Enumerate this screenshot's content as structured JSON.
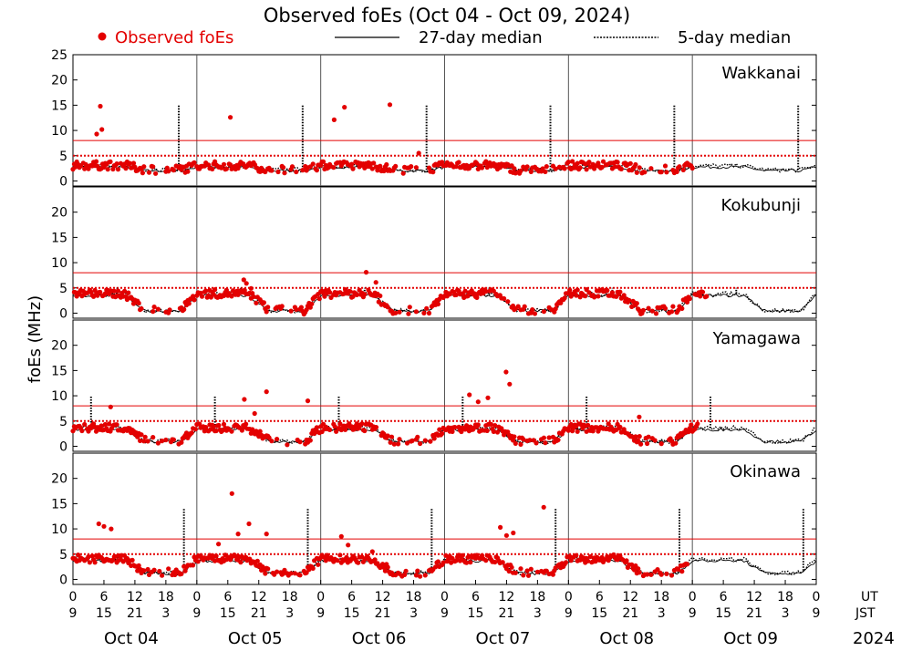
{
  "chart_data": {
    "type": "scatter",
    "title": "Observed foEs (Oct 04 - Oct 09, 2024)",
    "ylabel": "foEs (MHz)",
    "ylim": [
      -1,
      25
    ],
    "xlim_hours_ut": [
      0,
      144
    ],
    "y_ticks": [
      0,
      5,
      10,
      15,
      20,
      25
    ],
    "y_ticks_lower": [
      0,
      5,
      10,
      15,
      20
    ],
    "x_ticks_ut": [
      "0",
      "6",
      "12",
      "18",
      "0",
      "6",
      "12",
      "18",
      "0",
      "6",
      "12",
      "18",
      "0",
      "6",
      "12",
      "18",
      "0",
      "6",
      "12",
      "18",
      "0",
      "6",
      "12",
      "18",
      "0"
    ],
    "x_ticks_jst": [
      "9",
      "15",
      "21",
      "3",
      "9",
      "15",
      "21",
      "3",
      "9",
      "15",
      "21",
      "3",
      "9",
      "15",
      "21",
      "3",
      "9",
      "15",
      "21",
      "3",
      "9",
      "15",
      "21",
      "3",
      "9"
    ],
    "ut_label": "UT",
    "jst_label": "JST",
    "year_label": "2024",
    "days": [
      "Oct 04",
      "Oct 05",
      "Oct 06",
      "Oct 07",
      "Oct 08",
      "Oct 09"
    ],
    "legend": {
      "observed": "Observed foEs",
      "median27": "27-day median",
      "median5": "5-day median"
    },
    "reference_lines_mhz": [
      8,
      5
    ],
    "colors": {
      "observed": "#e30000",
      "median": "#000000",
      "reference": "#e30000"
    },
    "stations": [
      {
        "name": "Wakkanai",
        "obs_end_hour": 120,
        "base": 3.0,
        "night": 2.2,
        "outliers": [
          [
            4.6,
            9.3
          ],
          [
            5.6,
            10.2
          ],
          [
            5.3,
            14.8
          ],
          [
            30.5,
            12.6
          ],
          [
            50.6,
            12.1
          ],
          [
            52.6,
            14.6
          ],
          [
            61.4,
            15.1
          ],
          [
            67.0,
            5.5
          ]
        ],
        "spikes": [
          [
            20.5,
            15.0
          ],
          [
            44.5,
            15.0
          ],
          [
            68.5,
            15.0
          ],
          [
            92.5,
            15.0
          ],
          [
            116.5,
            15.0
          ],
          [
            140.5,
            15.0
          ]
        ]
      },
      {
        "name": "Kokubunji",
        "obs_end_hour": 123,
        "base": 3.8,
        "night": 0.5,
        "outliers": [
          [
            33.1,
            6.6
          ],
          [
            34.5,
            4.9
          ],
          [
            56.8,
            8.1
          ],
          [
            58.7,
            6.1
          ],
          [
            33.6,
            5.9
          ]
        ],
        "spikes": [
          [
            8.5,
            5.0
          ],
          [
            32.5,
            5.0
          ],
          [
            56.5,
            5.0
          ],
          [
            80.5,
            5.0
          ],
          [
            104.5,
            5.0
          ],
          [
            128.5,
            5.0
          ]
        ]
      },
      {
        "name": "Yamagawa",
        "obs_end_hour": 121,
        "base": 3.6,
        "night": 1.0,
        "outliers": [
          [
            7.3,
            7.8
          ],
          [
            33.2,
            9.3
          ],
          [
            37.5,
            10.8
          ],
          [
            45.5,
            9.0
          ],
          [
            35.2,
            6.5
          ],
          [
            76.8,
            10.2
          ],
          [
            78.5,
            8.8
          ],
          [
            80.4,
            9.6
          ],
          [
            83.9,
            14.7
          ],
          [
            84.6,
            12.3
          ],
          [
            109.7,
            5.8
          ]
        ],
        "spikes": [
          [
            3.5,
            10.0
          ],
          [
            27.5,
            10.0
          ],
          [
            51.5,
            10.0
          ],
          [
            75.5,
            10.0
          ],
          [
            99.5,
            10.0
          ],
          [
            123.5,
            10.0
          ]
        ]
      },
      {
        "name": "Okinawa",
        "obs_end_hour": 119,
        "base": 4.0,
        "night": 1.3,
        "outliers": [
          [
            30.8,
            17.0
          ],
          [
            32.0,
            9.0
          ],
          [
            34.1,
            11.0
          ],
          [
            37.5,
            9.0
          ],
          [
            5.0,
            11.0
          ],
          [
            6.0,
            10.5
          ],
          [
            7.4,
            10.0
          ],
          [
            28.2,
            7.0
          ],
          [
            52.0,
            8.5
          ],
          [
            53.3,
            6.8
          ],
          [
            82.8,
            10.3
          ],
          [
            84.0,
            8.7
          ],
          [
            85.3,
            9.2
          ],
          [
            91.2,
            14.3
          ],
          [
            58.0,
            5.5
          ]
        ],
        "spikes": [
          [
            21.5,
            14.0
          ],
          [
            45.5,
            14.0
          ],
          [
            69.5,
            14.0
          ],
          [
            93.5,
            14.0
          ],
          [
            117.5,
            14.0
          ],
          [
            141.5,
            14.0
          ]
        ]
      }
    ]
  }
}
